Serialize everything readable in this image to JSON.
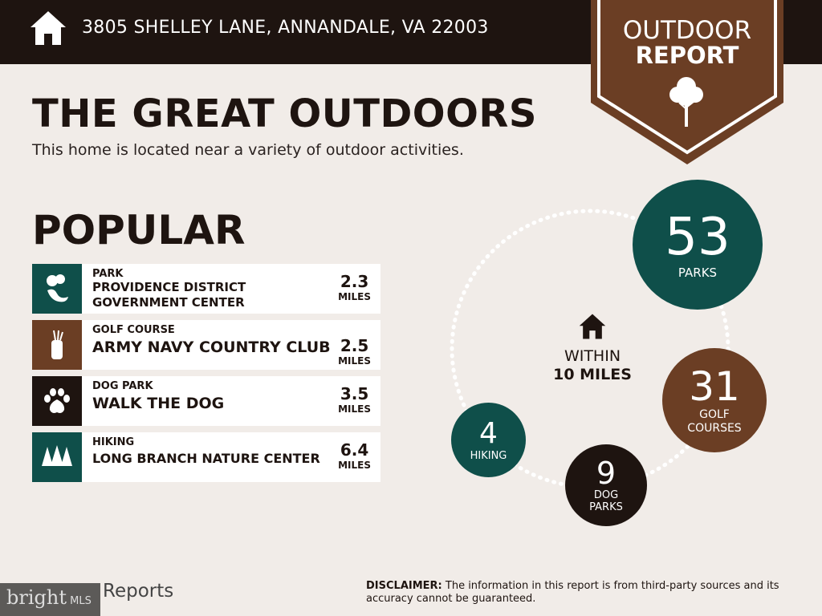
{
  "header": {
    "address": "3805 SHELLEY LANE, ANNANDALE, VA 22003",
    "icon": "home-icon"
  },
  "badge": {
    "line1": "OUTDOOR",
    "line2": "REPORT",
    "icon": "tree-icon"
  },
  "title": "THE GREAT OUTDOORS",
  "subtitle": "This home is located near a variety of outdoor activities.",
  "popular": {
    "heading": "POPULAR",
    "items": [
      {
        "category": "PARK",
        "name": "PROVIDENCE DISTRICT GOVERNMENT CENTER",
        "distance": "2.3",
        "unit": "MILES",
        "color": "#0f4f4a",
        "icon": "park-icon"
      },
      {
        "category": "GOLF COURSE",
        "name": "ARMY NAVY COUNTRY CLUB",
        "distance": "2.5",
        "unit": "MILES",
        "color": "#6b3e24",
        "icon": "golf-bag-icon"
      },
      {
        "category": "DOG PARK",
        "name": "WALK THE DOG",
        "distance": "3.5",
        "unit": "MILES",
        "color": "#1e1410",
        "icon": "paw-icon"
      },
      {
        "category": "HIKING",
        "name": "LONG BRANCH NATURE CENTER",
        "distance": "6.4",
        "unit": "MILES",
        "color": "#0f4f4a",
        "icon": "pine-trees-icon"
      }
    ]
  },
  "summary": {
    "within_line1": "WITHIN",
    "within_line2": "10 MILES",
    "parks": {
      "count": "53",
      "label": "PARKS"
    },
    "golf": {
      "count": "31",
      "label1": "GOLF",
      "label2": "COURSES"
    },
    "dog": {
      "count": "9",
      "label1": "DOG",
      "label2": "PARKS"
    },
    "hiking": {
      "count": "4",
      "label": "HIKING"
    }
  },
  "footer": {
    "disclaimer_label": "DISCLAIMER:",
    "disclaimer_text": " The information in this report is from third-party sources and its accuracy cannot be guaranteed.",
    "brand": "Reports",
    "watermark": "bright MLS"
  },
  "colors": {
    "teal": "#0f4f4a",
    "brown": "#6b3e24",
    "dark": "#1e1410",
    "background": "#f1ece8"
  }
}
